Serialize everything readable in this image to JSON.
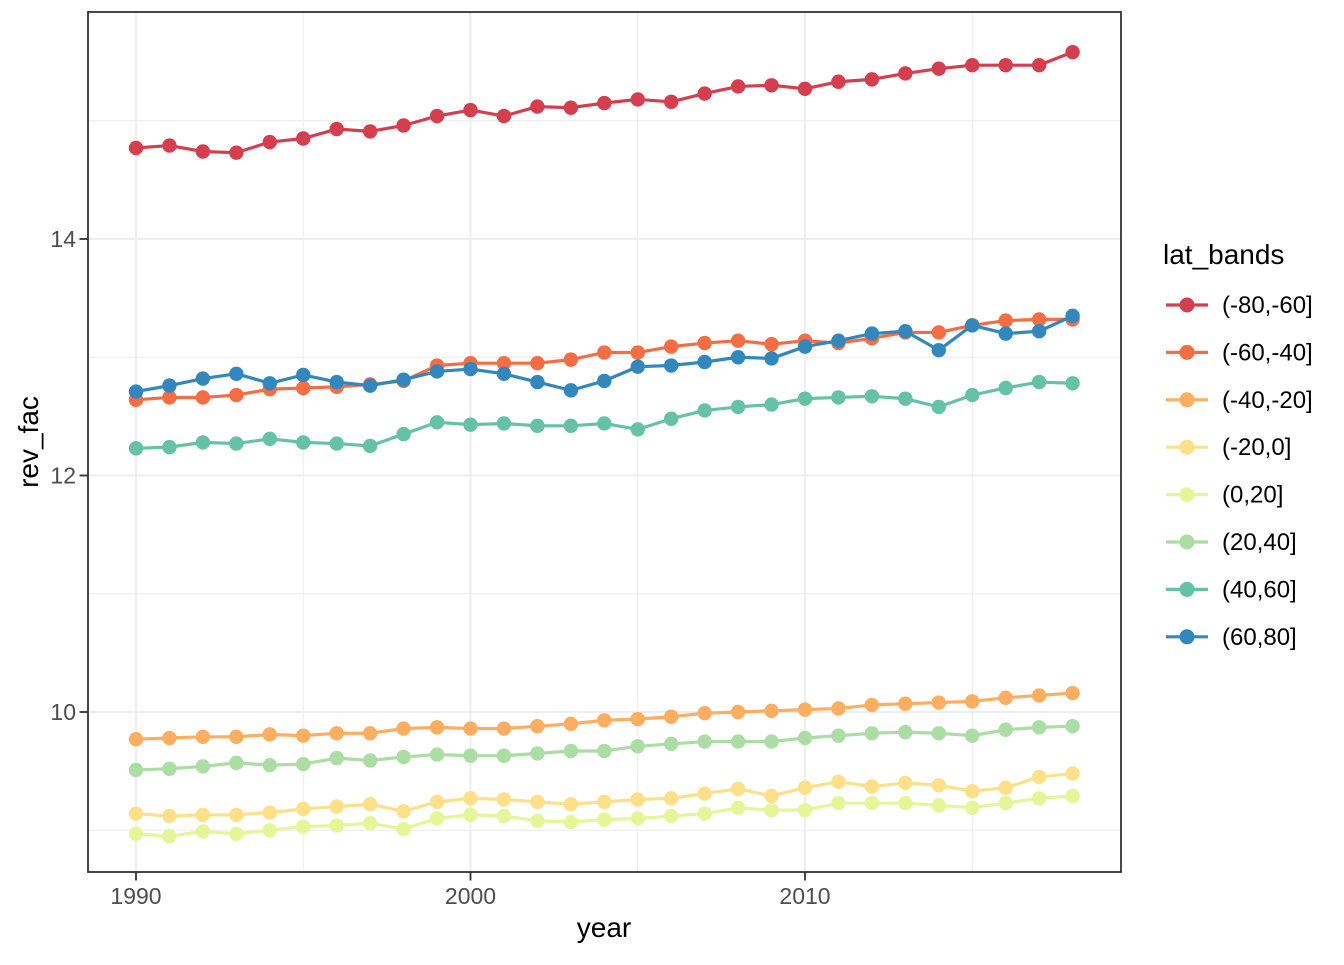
{
  "chart_data": {
    "type": "line",
    "title": "",
    "xlabel": "year",
    "ylabel": "rev_fac",
    "legend_title": "lat_bands",
    "legend_position": "right",
    "grid": true,
    "xlim": [
      1988.6,
      2019.4
    ],
    "ylim": [
      8.6,
      15.92
    ],
    "x_ticks": [
      1990,
      2000,
      2010
    ],
    "x_minor_ticks": [
      1995,
      2005,
      2015
    ],
    "y_ticks": [
      10,
      12,
      14
    ],
    "y_minor_ticks": [
      9,
      11,
      13,
      15
    ],
    "colors": {
      "grid": "#ebebeb",
      "panel_border": "#333333",
      "tick": "#333333",
      "tick_label": "#4d4d4d",
      "axis_title": "#000000",
      "background": "#ffffff"
    },
    "x": [
      1990,
      1991,
      1992,
      1993,
      1994,
      1995,
      1996,
      1997,
      1998,
      1999,
      2000,
      2001,
      2002,
      2003,
      2004,
      2005,
      2006,
      2007,
      2008,
      2009,
      2010,
      2011,
      2012,
      2013,
      2014,
      2015,
      2016,
      2017,
      2018
    ],
    "series": [
      {
        "name": "(-80,-60]",
        "color": "#D53E4F",
        "values": [
          14.77,
          14.79,
          14.74,
          14.73,
          14.82,
          14.85,
          14.93,
          14.91,
          14.96,
          15.04,
          15.09,
          15.04,
          15.12,
          15.11,
          15.15,
          15.18,
          15.16,
          15.23,
          15.29,
          15.3,
          15.27,
          15.33,
          15.35,
          15.4,
          15.44,
          15.47,
          15.47,
          15.47,
          15.58
        ]
      },
      {
        "name": "(-60,-40]",
        "color": "#F46D43",
        "values": [
          12.64,
          12.66,
          12.66,
          12.68,
          12.73,
          12.74,
          12.75,
          12.77,
          12.8,
          12.93,
          12.95,
          12.95,
          12.95,
          12.98,
          13.04,
          13.04,
          13.09,
          13.12,
          13.14,
          13.11,
          13.14,
          13.12,
          13.16,
          13.21,
          13.21,
          13.27,
          13.31,
          13.32,
          13.32
        ]
      },
      {
        "name": "(-40,-20]",
        "color": "#FDAE61",
        "values": [
          9.77,
          9.78,
          9.79,
          9.79,
          9.81,
          9.8,
          9.82,
          9.82,
          9.86,
          9.87,
          9.86,
          9.86,
          9.88,
          9.9,
          9.93,
          9.94,
          9.96,
          9.99,
          10.0,
          10.01,
          10.02,
          10.03,
          10.06,
          10.07,
          10.08,
          10.09,
          10.12,
          10.14,
          10.16
        ]
      },
      {
        "name": "(-20,0]",
        "color": "#FEE08B",
        "values": [
          9.14,
          9.12,
          9.13,
          9.13,
          9.15,
          9.18,
          9.2,
          9.22,
          9.16,
          9.24,
          9.27,
          9.26,
          9.24,
          9.22,
          9.24,
          9.26,
          9.27,
          9.31,
          9.35,
          9.29,
          9.36,
          9.41,
          9.37,
          9.4,
          9.38,
          9.33,
          9.36,
          9.45,
          9.48
        ]
      },
      {
        "name": "(0,20]",
        "color": "#E6F598",
        "values": [
          8.97,
          8.95,
          8.99,
          8.97,
          9.0,
          9.03,
          9.04,
          9.06,
          9.01,
          9.1,
          9.13,
          9.12,
          9.08,
          9.07,
          9.09,
          9.1,
          9.12,
          9.14,
          9.19,
          9.17,
          9.17,
          9.23,
          9.23,
          9.23,
          9.21,
          9.19,
          9.23,
          9.27,
          9.29
        ]
      },
      {
        "name": "(20,40]",
        "color": "#ABDDA4",
        "values": [
          9.51,
          9.52,
          9.54,
          9.57,
          9.55,
          9.56,
          9.61,
          9.59,
          9.62,
          9.64,
          9.63,
          9.63,
          9.65,
          9.67,
          9.67,
          9.71,
          9.73,
          9.75,
          9.75,
          9.75,
          9.78,
          9.8,
          9.82,
          9.83,
          9.82,
          9.8,
          9.85,
          9.87,
          9.88
        ]
      },
      {
        "name": "(40,60]",
        "color": "#66C2A5",
        "values": [
          12.23,
          12.24,
          12.28,
          12.27,
          12.31,
          12.28,
          12.27,
          12.25,
          12.35,
          12.45,
          12.43,
          12.44,
          12.42,
          12.42,
          12.44,
          12.39,
          12.48,
          12.55,
          12.58,
          12.6,
          12.65,
          12.66,
          12.67,
          12.65,
          12.58,
          12.68,
          12.74,
          12.79,
          12.78
        ]
      },
      {
        "name": "(60,80]",
        "color": "#3288BD",
        "values": [
          12.71,
          12.76,
          12.82,
          12.86,
          12.78,
          12.85,
          12.79,
          12.76,
          12.81,
          12.88,
          12.9,
          12.86,
          12.79,
          12.72,
          12.8,
          12.92,
          12.93,
          12.96,
          13.0,
          12.99,
          13.09,
          13.14,
          13.2,
          13.22,
          13.06,
          13.27,
          13.2,
          13.22,
          13.35
        ]
      }
    ]
  }
}
